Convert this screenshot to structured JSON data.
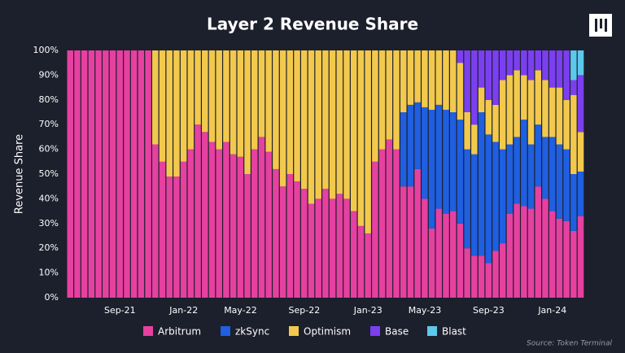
{
  "chart_data": {
    "type": "stacked-bar",
    "title": "Layer 2 Revenue Share",
    "y_label": "Revenue Share",
    "source": "Source: Token Terminal",
    "categories": [
      null,
      null,
      null,
      null,
      null,
      null,
      null,
      "Sep-21",
      null,
      null,
      null,
      null,
      null,
      null,
      null,
      null,
      "Jan-22",
      null,
      null,
      null,
      null,
      null,
      null,
      null,
      "May-22",
      null,
      null,
      null,
      null,
      null,
      null,
      null,
      null,
      "Sep-22",
      null,
      null,
      null,
      null,
      null,
      null,
      null,
      null,
      "Jan-23",
      null,
      null,
      null,
      null,
      null,
      null,
      null,
      "May-23",
      null,
      null,
      null,
      null,
      null,
      null,
      null,
      null,
      "Sep-23",
      null,
      null,
      null,
      null,
      null,
      null,
      null,
      null,
      "Jan-24",
      null,
      null,
      null,
      null
    ],
    "series": [
      {
        "name": "Arbitrum",
        "color": "#e640a0",
        "values": [
          100,
          100,
          100,
          100,
          100,
          100,
          100,
          100,
          100,
          100,
          100,
          100,
          62,
          55,
          49,
          49,
          55,
          60,
          70,
          67,
          63,
          60,
          63,
          58,
          57,
          50,
          60,
          65,
          59,
          52,
          45,
          50,
          47,
          44,
          38,
          40,
          44,
          40,
          42,
          40,
          35,
          29,
          26,
          55,
          60,
          64,
          60,
          45,
          45,
          52,
          40,
          28,
          36,
          34,
          35,
          30,
          20,
          17,
          17,
          14,
          19,
          22,
          34,
          38,
          37,
          36,
          45,
          40,
          35,
          32,
          31,
          27,
          33
        ]
      },
      {
        "name": "zkSync",
        "color": "#1f5fe0",
        "values": [
          0,
          0,
          0,
          0,
          0,
          0,
          0,
          0,
          0,
          0,
          0,
          0,
          0,
          0,
          0,
          0,
          0,
          0,
          0,
          0,
          0,
          0,
          0,
          0,
          0,
          0,
          0,
          0,
          0,
          0,
          0,
          0,
          0,
          0,
          0,
          0,
          0,
          0,
          0,
          0,
          0,
          0,
          0,
          0,
          0,
          0,
          0,
          30,
          33,
          27,
          37,
          48,
          42,
          42,
          40,
          42,
          40,
          41,
          58,
          52,
          44,
          38,
          28,
          27,
          35,
          26,
          25,
          25,
          30,
          30,
          29,
          23,
          18
        ]
      },
      {
        "name": "Optimism",
        "color": "#f2c94c",
        "values": [
          0,
          0,
          0,
          0,
          0,
          0,
          0,
          0,
          0,
          0,
          0,
          0,
          38,
          45,
          51,
          51,
          45,
          40,
          30,
          33,
          37,
          40,
          37,
          42,
          43,
          50,
          40,
          35,
          41,
          48,
          55,
          50,
          53,
          56,
          62,
          60,
          56,
          60,
          58,
          60,
          65,
          71,
          74,
          45,
          40,
          36,
          40,
          25,
          22,
          21,
          23,
          24,
          22,
          24,
          25,
          23,
          15,
          12,
          10,
          14,
          15,
          28,
          28,
          27,
          18,
          26,
          22,
          23,
          20,
          23,
          20,
          32,
          16
        ]
      },
      {
        "name": "Base",
        "color": "#7b3ff0",
        "values": [
          0,
          0,
          0,
          0,
          0,
          0,
          0,
          0,
          0,
          0,
          0,
          0,
          0,
          0,
          0,
          0,
          0,
          0,
          0,
          0,
          0,
          0,
          0,
          0,
          0,
          0,
          0,
          0,
          0,
          0,
          0,
          0,
          0,
          0,
          0,
          0,
          0,
          0,
          0,
          0,
          0,
          0,
          0,
          0,
          0,
          0,
          0,
          0,
          0,
          0,
          0,
          0,
          0,
          0,
          0,
          5,
          25,
          30,
          15,
          20,
          22,
          12,
          10,
          8,
          10,
          12,
          8,
          12,
          15,
          15,
          20,
          6,
          23
        ]
      },
      {
        "name": "Blast",
        "color": "#5cc8ec",
        "values": [
          0,
          0,
          0,
          0,
          0,
          0,
          0,
          0,
          0,
          0,
          0,
          0,
          0,
          0,
          0,
          0,
          0,
          0,
          0,
          0,
          0,
          0,
          0,
          0,
          0,
          0,
          0,
          0,
          0,
          0,
          0,
          0,
          0,
          0,
          0,
          0,
          0,
          0,
          0,
          0,
          0,
          0,
          0,
          0,
          0,
          0,
          0,
          0,
          0,
          0,
          0,
          0,
          0,
          0,
          0,
          0,
          0,
          0,
          0,
          0,
          0,
          0,
          0,
          0,
          0,
          0,
          0,
          0,
          0,
          0,
          0,
          12,
          10
        ]
      }
    ],
    "ylim": [
      0,
      100
    ],
    "yticks": [
      {
        "value": 0,
        "label": "0%"
      },
      {
        "value": 10,
        "label": "10%"
      },
      {
        "value": 20,
        "label": "20%"
      },
      {
        "value": 30,
        "label": "30%"
      },
      {
        "value": 40,
        "label": "40%"
      },
      {
        "value": 50,
        "label": "50%"
      },
      {
        "value": 60,
        "label": "60%"
      },
      {
        "value": 70,
        "label": "70%"
      },
      {
        "value": 80,
        "label": "80%"
      },
      {
        "value": 90,
        "label": "90%"
      },
      {
        "value": 100,
        "label": "100%"
      }
    ]
  }
}
